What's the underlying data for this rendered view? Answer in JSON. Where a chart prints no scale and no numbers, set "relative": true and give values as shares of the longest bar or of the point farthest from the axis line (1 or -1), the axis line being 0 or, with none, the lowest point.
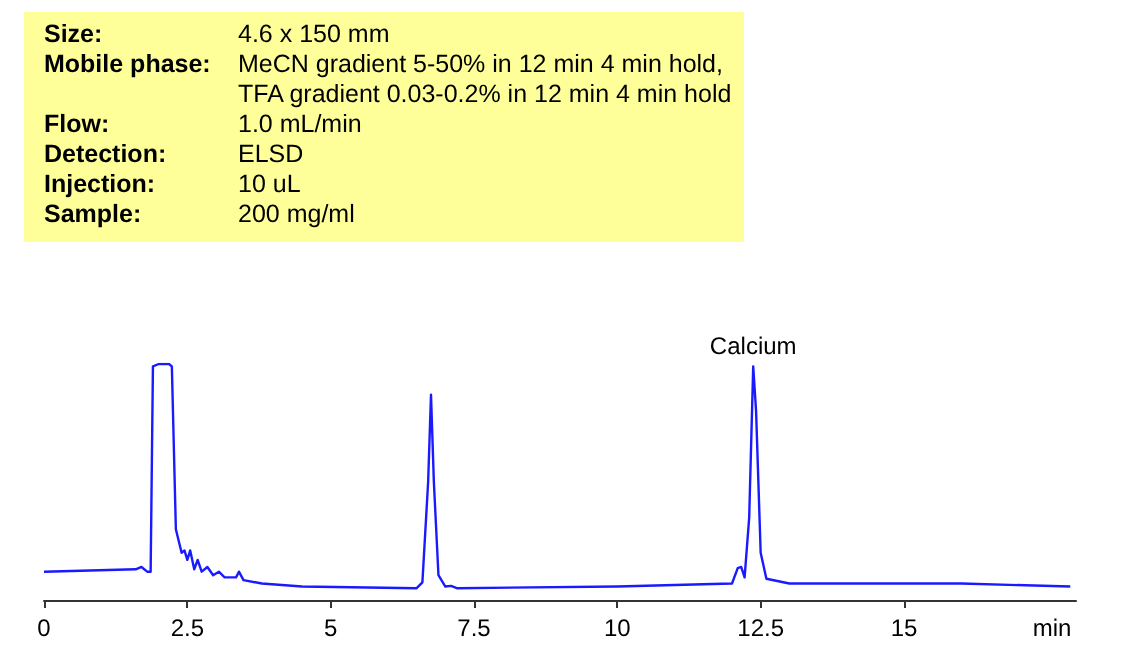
{
  "chart_data": {
    "type": "line",
    "relative": true,
    "xlabel": "min",
    "xlim": [
      0,
      18
    ],
    "xticks": [
      0,
      2.5,
      5,
      7.5,
      10,
      12.5,
      15
    ],
    "grid": false,
    "marker": "none",
    "tick_labels": "x",
    "annotations": [
      "Size: 4.6 x 150 mm",
      "Mobile phase: MeCN gradient 5-50% in 12 min 4 min hold, TFA gradient 0.03-0.2% in 12 min 4 min hold",
      "Flow: 1.0 mL/min",
      "Detection: ELSD",
      "Injection: 10 uL",
      "Sample: 200 mg/ml",
      {
        "text": "Calcium",
        "x": 12.37,
        "y": 0.99
      }
    ],
    "series": [
      {
        "color": "#1a1aff",
        "x": [
          0,
          1.6,
          1.7,
          1.8,
          1.86,
          1.9,
          2.0,
          2.18,
          2.23,
          2.3,
          2.4,
          2.45,
          2.5,
          2.55,
          2.62,
          2.68,
          2.75,
          2.85,
          2.95,
          3.05,
          3.15,
          3.35,
          3.4,
          3.48,
          3.8,
          4.5,
          6.5,
          6.6,
          6.7,
          6.75,
          6.8,
          6.88,
          7.0,
          7.1,
          7.2,
          10,
          12.0,
          12.1,
          12.16,
          12.22,
          12.3,
          12.37,
          12.42,
          12.5,
          12.6,
          13,
          15,
          16,
          17.9
        ],
        "values": [
          0.12,
          0.13,
          0.14,
          0.12,
          0.12,
          0.99,
          1.0,
          1.0,
          0.99,
          0.3,
          0.2,
          0.21,
          0.17,
          0.21,
          0.13,
          0.17,
          0.12,
          0.14,
          0.105,
          0.12,
          0.096,
          0.096,
          0.12,
          0.084,
          0.07,
          0.057,
          0.05,
          0.075,
          0.5,
          0.87,
          0.5,
          0.105,
          0.057,
          0.06,
          0.05,
          0.057,
          0.07,
          0.135,
          0.14,
          0.096,
          0.35,
          0.99,
          0.8,
          0.2,
          0.09,
          0.07,
          0.07,
          0.07,
          0.057
        ]
      }
    ]
  }
}
